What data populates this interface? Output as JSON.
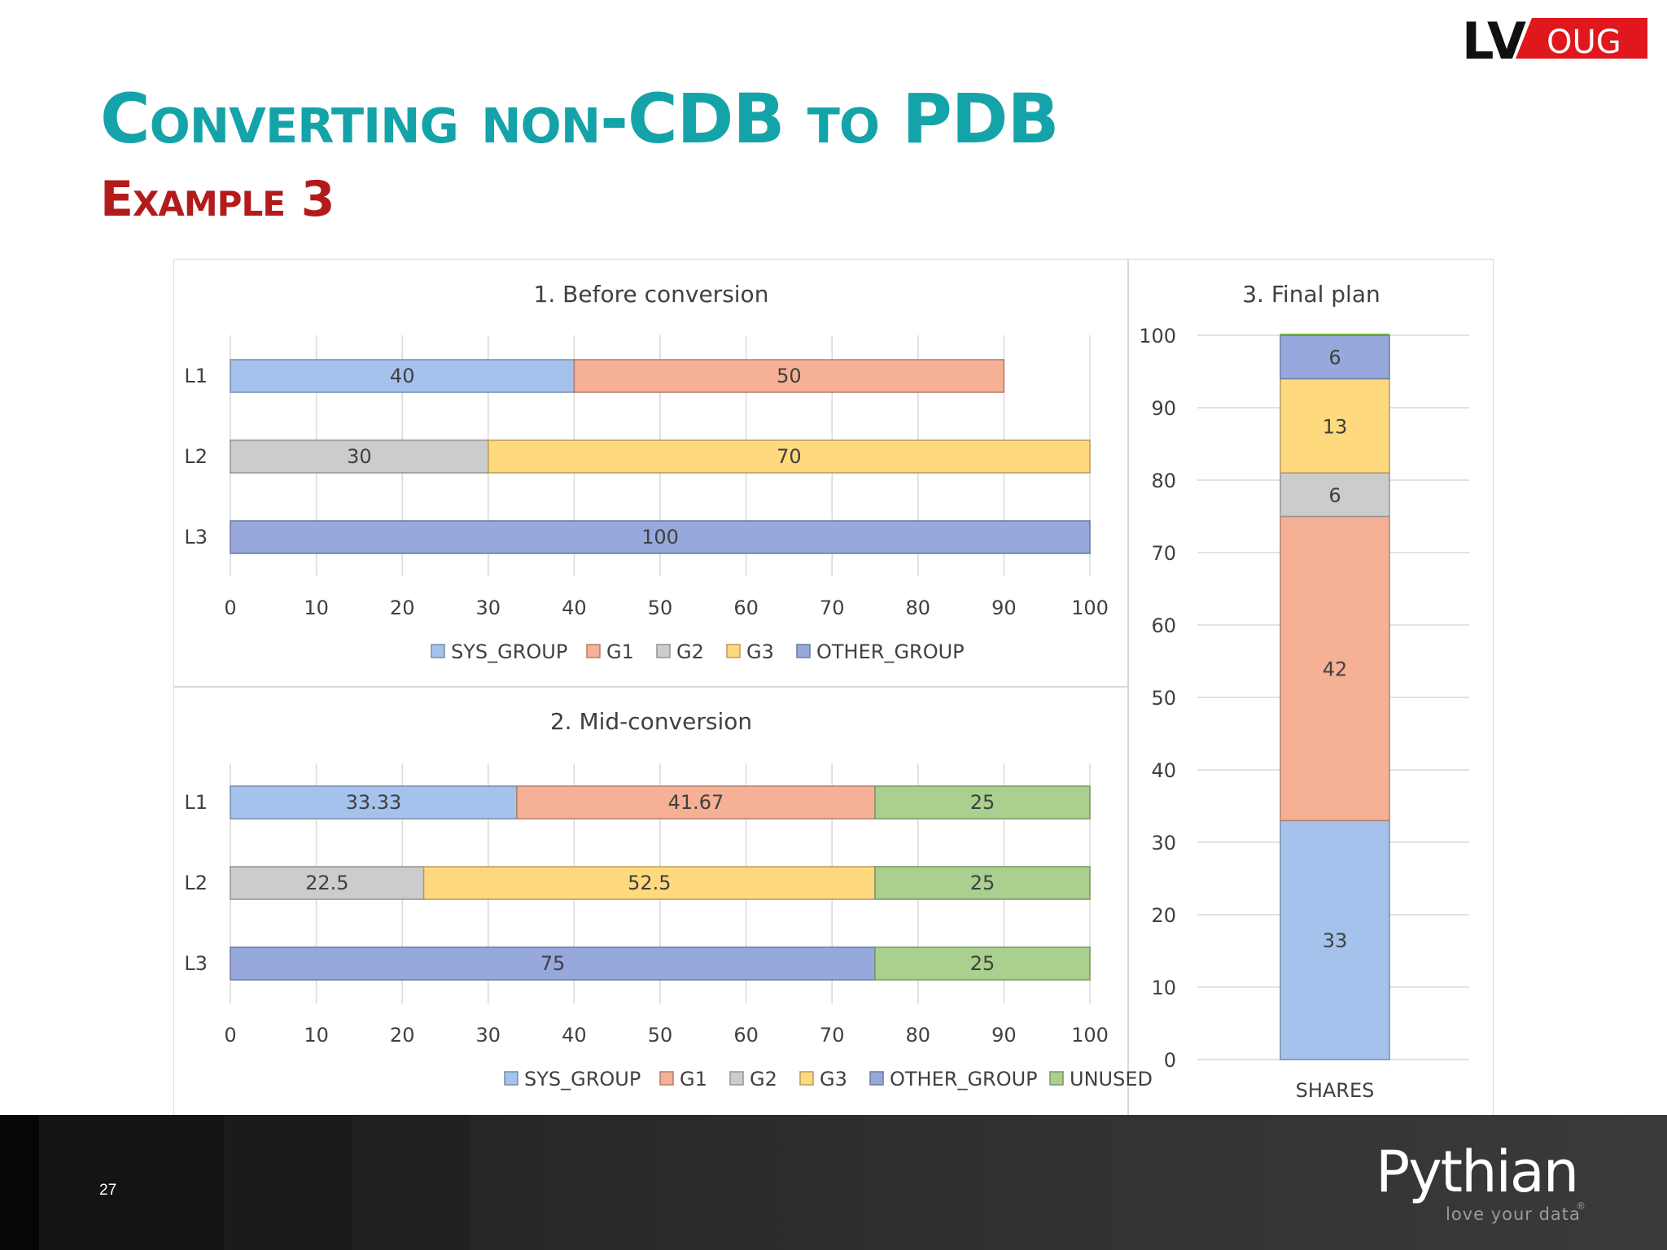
{
  "slide": {
    "title": "Converting non-CDB to PDB",
    "subtitle": "Example 3",
    "page_number": "27"
  },
  "logos": {
    "event": {
      "part1": "LV",
      "part2": "OUG",
      "accent": "#e0171c"
    },
    "brand": {
      "name": "Pythian",
      "tagline": "love your data",
      "mark": "®"
    }
  },
  "colors": {
    "title": "#14a3a8",
    "subtitle": "#b31b1b",
    "SYS_GROUP": "#a4c2ec",
    "G1": "#f5b095",
    "G2": "#cccccc",
    "G3": "#fed97e",
    "OTHER_GROUP": "#97a8dd",
    "UNUSED": "#a9d08e"
  },
  "chart_data": [
    {
      "type": "bar",
      "orientation": "horizontal",
      "stacked": true,
      "title": "1. Before conversion",
      "categories": [
        "L1",
        "L2",
        "L3"
      ],
      "series": [
        {
          "name": "SYS_GROUP",
          "values": [
            40,
            0,
            0
          ]
        },
        {
          "name": "G1",
          "values": [
            50,
            0,
            0
          ]
        },
        {
          "name": "G2",
          "values": [
            0,
            30,
            0
          ]
        },
        {
          "name": "G3",
          "values": [
            0,
            70,
            0
          ]
        },
        {
          "name": "OTHER_GROUP",
          "values": [
            0,
            0,
            100
          ]
        }
      ],
      "xlim": [
        0,
        100
      ],
      "xticks": [
        0,
        10,
        20,
        30,
        40,
        50,
        60,
        70,
        80,
        90,
        100
      ],
      "grid": true,
      "legend": "bottom"
    },
    {
      "type": "bar",
      "orientation": "horizontal",
      "stacked": true,
      "title": "2. Mid-conversion",
      "categories": [
        "L1",
        "L2",
        "L3"
      ],
      "series": [
        {
          "name": "SYS_GROUP",
          "values": [
            33.33,
            0,
            0
          ]
        },
        {
          "name": "G1",
          "values": [
            41.67,
            0,
            0
          ]
        },
        {
          "name": "G2",
          "values": [
            0,
            22.5,
            0
          ]
        },
        {
          "name": "G3",
          "values": [
            0,
            52.5,
            0
          ]
        },
        {
          "name": "OTHER_GROUP",
          "values": [
            0,
            0,
            75
          ]
        },
        {
          "name": "UNUSED",
          "values": [
            25,
            25,
            25
          ]
        }
      ],
      "xlim": [
        0,
        100
      ],
      "xticks": [
        0,
        10,
        20,
        30,
        40,
        50,
        60,
        70,
        80,
        90,
        100
      ],
      "grid": true,
      "legend": "bottom"
    },
    {
      "type": "bar",
      "orientation": "vertical",
      "stacked": true,
      "title": "3. Final plan",
      "categories": [
        "SHARES"
      ],
      "series": [
        {
          "name": "SYS_GROUP",
          "values": [
            33
          ]
        },
        {
          "name": "G1",
          "values": [
            42
          ]
        },
        {
          "name": "G2",
          "values": [
            6
          ]
        },
        {
          "name": "G3",
          "values": [
            13
          ]
        },
        {
          "name": "OTHER_GROUP",
          "values": [
            6
          ]
        }
      ],
      "ylim": [
        0,
        100
      ],
      "yticks": [
        0,
        10,
        20,
        30,
        40,
        50,
        60,
        70,
        80,
        90,
        100
      ],
      "grid": true,
      "legend": "none"
    }
  ]
}
